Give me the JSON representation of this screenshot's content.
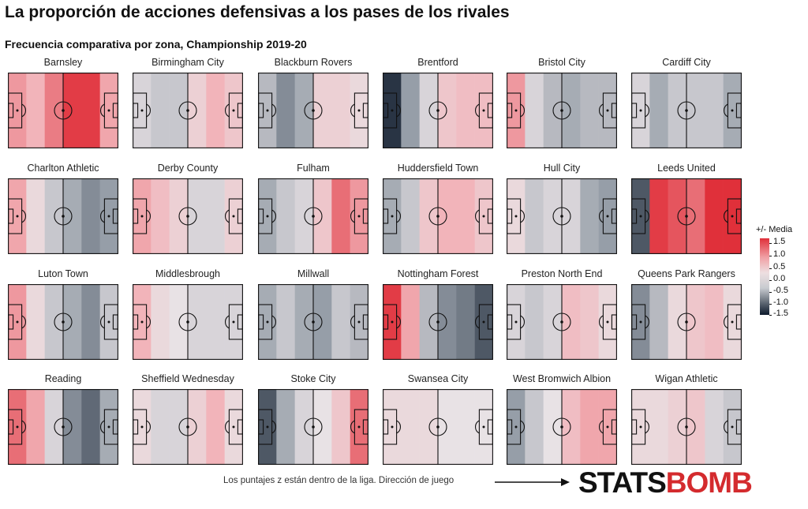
{
  "title": "La proporción de acciones defensivas a los pases de los rivales",
  "subtitle": "Frecuencia comparativa por zona, Championship 2019-20",
  "legend": {
    "title": "+/- Media",
    "labels": [
      "1.5",
      "1.0",
      "0.5",
      "0.0",
      "-0.5",
      "-1.0",
      "-1.5"
    ]
  },
  "caption": "Los puntajes z están dentro de la liga. Dirección de juego",
  "logo": {
    "part1": "STATS",
    "part2": "BOMB"
  },
  "colors": {
    "high": "#e0303a",
    "mid": "#eedfe1",
    "low": "#0d1a2c"
  },
  "chart_data": {
    "type": "heatmap",
    "zones_per_pitch": 6,
    "value_range": [
      -1.5,
      1.5
    ],
    "teams": [
      {
        "name": "Barnsley",
        "values": [
          0.7,
          0.5,
          0.9,
          1.4,
          1.4,
          0.6
        ]
      },
      {
        "name": "Birmingham City",
        "values": [
          -0.1,
          -0.2,
          -0.2,
          0.2,
          0.5,
          0.3
        ]
      },
      {
        "name": "Blackburn Rovers",
        "values": [
          -0.3,
          -0.6,
          -0.4,
          0.2,
          0.2,
          0.1
        ]
      },
      {
        "name": "Brentford",
        "values": [
          -1.2,
          -0.5,
          -0.1,
          0.3,
          0.4,
          0.4
        ]
      },
      {
        "name": "Bristol City",
        "values": [
          0.7,
          -0.1,
          -0.3,
          -0.4,
          -0.3,
          -0.3
        ]
      },
      {
        "name": "Cardiff City",
        "values": [
          -0.1,
          -0.4,
          -0.2,
          -0.2,
          -0.2,
          -0.4
        ]
      },
      {
        "name": "Charlton Athletic",
        "values": [
          0.6,
          0.1,
          -0.2,
          -0.4,
          -0.6,
          -0.5
        ]
      },
      {
        "name": "Derby County",
        "values": [
          0.6,
          0.4,
          0.2,
          -0.1,
          -0.1,
          0.2
        ]
      },
      {
        "name": "Fulham",
        "values": [
          -0.4,
          -0.2,
          -0.1,
          0.3,
          1.0,
          0.7
        ]
      },
      {
        "name": "Huddersfield Town",
        "values": [
          -0.4,
          -0.2,
          0.3,
          0.5,
          0.5,
          0.3
        ]
      },
      {
        "name": "Hull City",
        "values": [
          0.1,
          -0.2,
          -0.1,
          -0.1,
          -0.4,
          -0.5
        ]
      },
      {
        "name": "Leeds United",
        "values": [
          -0.9,
          1.4,
          1.2,
          1.0,
          1.5,
          1.5
        ]
      },
      {
        "name": "Luton Town",
        "values": [
          0.7,
          0.1,
          -0.2,
          -0.4,
          -0.6,
          -0.2
        ]
      },
      {
        "name": "Middlesbrough",
        "values": [
          0.5,
          0.1,
          0.0,
          -0.1,
          -0.1,
          -0.1
        ]
      },
      {
        "name": "Millwall",
        "values": [
          -0.4,
          -0.2,
          -0.4,
          -0.5,
          -0.2,
          -0.3
        ]
      },
      {
        "name": "Nottingham Forest",
        "values": [
          1.4,
          0.6,
          -0.3,
          -0.6,
          -0.7,
          -0.9
        ]
      },
      {
        "name": "Preston North End",
        "values": [
          -0.1,
          -0.2,
          -0.1,
          0.4,
          0.3,
          0.1
        ]
      },
      {
        "name": "Queens Park Rangers",
        "values": [
          -0.6,
          -0.3,
          0.1,
          0.3,
          0.4,
          0.1
        ]
      },
      {
        "name": "Reading",
        "values": [
          1.0,
          0.6,
          -0.1,
          -0.6,
          -0.8,
          -0.4
        ]
      },
      {
        "name": "Sheffield Wednesday",
        "values": [
          0.1,
          -0.1,
          -0.1,
          0.2,
          0.5,
          0.1
        ]
      },
      {
        "name": "Stoke City",
        "values": [
          -0.9,
          -0.4,
          -0.1,
          0.0,
          0.3,
          1.0
        ]
      },
      {
        "name": "Swansea City",
        "values": [
          0.1,
          0.1,
          0.1,
          0.0,
          0.0,
          0.0
        ]
      },
      {
        "name": "West Bromwich Albion",
        "values": [
          -0.5,
          -0.2,
          0.0,
          0.4,
          0.6,
          0.6
        ]
      },
      {
        "name": "Wigan Athletic",
        "values": [
          0.1,
          0.1,
          0.2,
          0.3,
          -0.1,
          -0.2
        ]
      }
    ]
  }
}
